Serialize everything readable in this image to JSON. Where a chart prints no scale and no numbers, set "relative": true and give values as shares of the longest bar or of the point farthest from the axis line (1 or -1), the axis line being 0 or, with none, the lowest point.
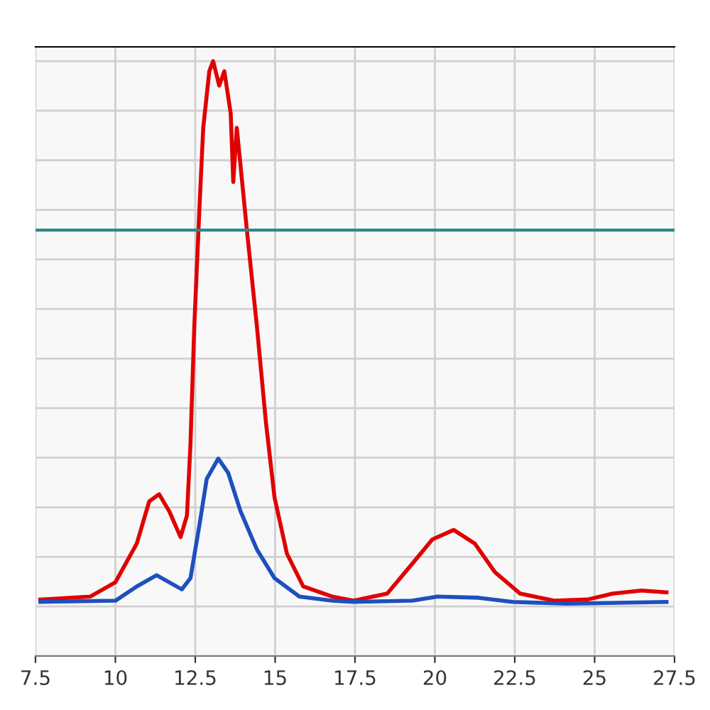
{
  "chart_data": {
    "type": "line",
    "relative": true,
    "grid": true,
    "tick_labels": "x",
    "marker": "none",
    "line_style": "solid",
    "xlim": [
      7.5,
      27.5
    ],
    "xticks": [
      7.5,
      10,
      12.5,
      15,
      17.5,
      20,
      22.5,
      25,
      27.5
    ],
    "series": [
      {
        "color": "#e00000",
        "x": [
          7.65,
          9.22,
          10.0,
          10.67,
          11.06,
          11.37,
          11.69,
          12.04,
          12.24,
          12.35,
          12.47,
          12.63,
          12.75,
          12.94,
          13.06,
          13.25,
          13.41,
          13.61,
          13.69,
          13.8,
          13.92,
          14.12,
          14.43,
          14.71,
          14.98,
          15.37,
          15.88,
          16.78,
          17.45,
          18.51,
          19.29,
          19.92,
          20.59,
          21.25,
          21.88,
          22.67,
          23.73,
          24.78,
          25.57,
          26.47,
          27.25
        ],
        "values": [
          0.095,
          0.1,
          0.124,
          0.189,
          0.26,
          0.272,
          0.243,
          0.2,
          0.236,
          0.356,
          0.554,
          0.752,
          0.888,
          0.983,
          1.0,
          0.959,
          0.983,
          0.912,
          0.797,
          0.888,
          0.823,
          0.714,
          0.554,
          0.394,
          0.267,
          0.172,
          0.117,
          0.1,
          0.093,
          0.105,
          0.155,
          0.196,
          0.212,
          0.189,
          0.141,
          0.105,
          0.093,
          0.095,
          0.105,
          0.11,
          0.107
        ]
      },
      {
        "color": "#1f4fbf",
        "x": [
          7.65,
          10.0,
          10.67,
          11.29,
          12.08,
          12.35,
          12.63,
          12.86,
          13.22,
          13.53,
          13.92,
          14.43,
          14.98,
          15.76,
          16.78,
          17.45,
          19.29,
          20.08,
          21.37,
          22.43,
          24.12,
          27.25
        ],
        "values": [
          0.091,
          0.093,
          0.117,
          0.136,
          0.112,
          0.131,
          0.22,
          0.298,
          0.332,
          0.308,
          0.243,
          0.179,
          0.131,
          0.1,
          0.093,
          0.091,
          0.093,
          0.1,
          0.098,
          0.091,
          0.088,
          0.091
        ]
      }
    ],
    "ref_lines": [
      {
        "axis": "y",
        "value": 0.716,
        "color": "#2a8a8a",
        "line_style": "solid"
      }
    ]
  }
}
